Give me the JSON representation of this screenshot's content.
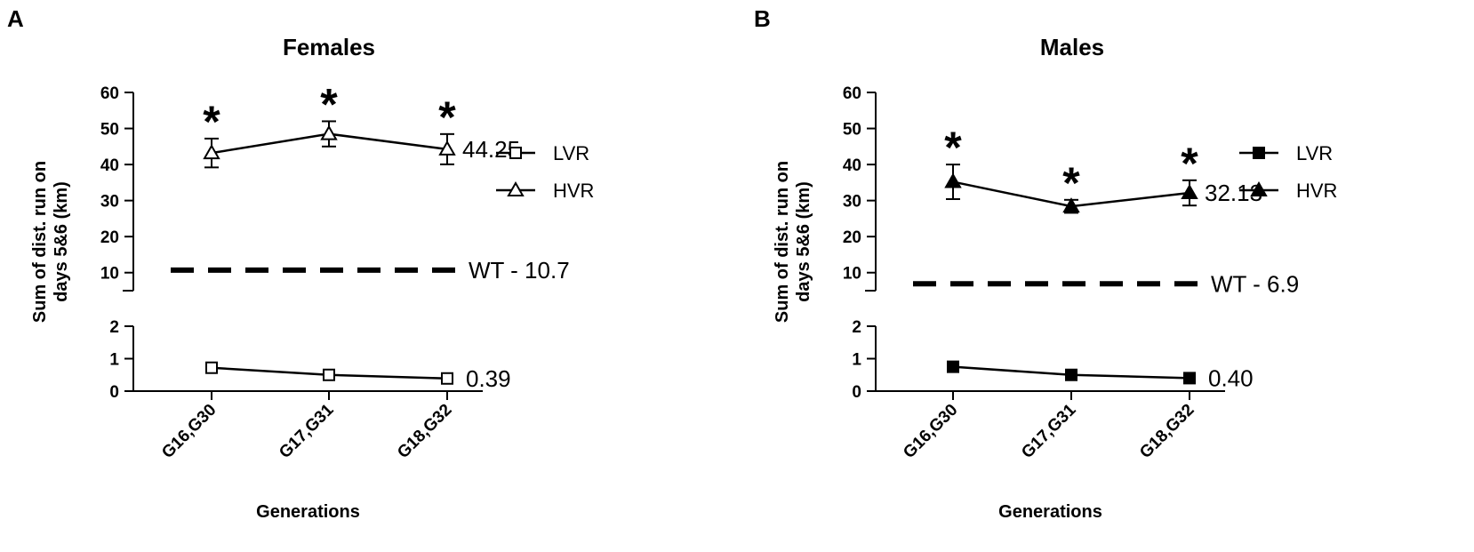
{
  "x_title": "Generations",
  "y_title_line1": "Sum of dist. run on",
  "y_title_line2": "days 5&6 (km)",
  "colors": {
    "ink": "#000000",
    "background": "#ffffff"
  },
  "panels": [
    {
      "letter": "A",
      "title": "Females",
      "open_markers": true,
      "wt_label": "WT - 10.7",
      "hvr_end_label": "44.25",
      "lvr_end_label": "0.39",
      "legend": [
        "LVR",
        "HVR"
      ],
      "upper_ticks": [
        "10",
        "20",
        "30",
        "40",
        "50",
        "60"
      ],
      "lower_ticks": [
        "0",
        "1",
        "2"
      ],
      "star_symbol": "*"
    },
    {
      "letter": "B",
      "title": "Males",
      "open_markers": false,
      "wt_label": "WT - 6.9",
      "hvr_end_label": "32.13",
      "lvr_end_label": "0.40",
      "legend": [
        "LVR",
        "HVR"
      ],
      "upper_ticks": [
        "10",
        "20",
        "30",
        "40",
        "50",
        "60"
      ],
      "lower_ticks": [
        "0",
        "1",
        "2"
      ],
      "star_symbol": "*"
    }
  ],
  "chart_data": [
    {
      "type": "line",
      "title": "Females",
      "xlabel": "Generations",
      "ylabel": "Sum of dist. run on days 5&6 (km)",
      "categories": [
        "G16,G30",
        "G17,G31",
        "G18,G32"
      ],
      "y_axis_broken": true,
      "ylim_upper": [
        5,
        60
      ],
      "ylim_lower": [
        0,
        2
      ],
      "series": [
        {
          "name": "LVR",
          "marker": "open-square",
          "values": [
            0.72,
            0.5,
            0.39
          ],
          "errors": [
            0.06,
            0.05,
            0.04
          ]
        },
        {
          "name": "HVR",
          "marker": "open-triangle",
          "values": [
            43.2,
            48.5,
            44.25
          ],
          "errors": [
            4.0,
            3.5,
            4.2
          ]
        }
      ],
      "reference_line": {
        "label": "WT - 10.7",
        "value": 10.7,
        "style": "dashed"
      },
      "significance": [
        true,
        true,
        true
      ],
      "legend_position": "right"
    },
    {
      "type": "line",
      "title": "Males",
      "xlabel": "Generations",
      "ylabel": "Sum of dist. run on days 5&6 (km)",
      "categories": [
        "G16,G30",
        "G17,G31",
        "G18,G32"
      ],
      "y_axis_broken": true,
      "ylim_upper": [
        5,
        60
      ],
      "ylim_lower": [
        0,
        2
      ],
      "series": [
        {
          "name": "LVR",
          "marker": "filled-square",
          "values": [
            0.75,
            0.5,
            0.4
          ],
          "errors": [
            0.05,
            0.04,
            0.04
          ]
        },
        {
          "name": "HVR",
          "marker": "filled-triangle",
          "values": [
            35.2,
            28.4,
            32.13
          ],
          "errors": [
            4.8,
            1.8,
            3.5
          ]
        }
      ],
      "reference_line": {
        "label": "WT - 6.9",
        "value": 6.9,
        "style": "dashed"
      },
      "significance": [
        true,
        true,
        true
      ],
      "legend_position": "right"
    }
  ]
}
